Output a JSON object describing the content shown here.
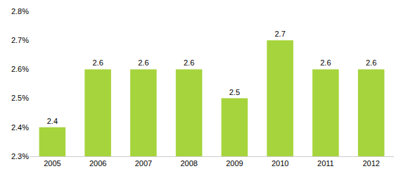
{
  "chart_data": {
    "type": "bar",
    "categories": [
      "2005",
      "2006",
      "2007",
      "2008",
      "2009",
      "2010",
      "2011",
      "2012"
    ],
    "values": [
      2.4,
      2.6,
      2.6,
      2.6,
      2.5,
      2.7,
      2.6,
      2.6
    ],
    "color": "#a6d43c",
    "ylim": [
      2.3,
      2.8
    ],
    "yticks": [
      {
        "value": 2.3,
        "label": "2.3%"
      },
      {
        "value": 2.4,
        "label": "2.4%"
      },
      {
        "value": 2.5,
        "label": "2.5%"
      },
      {
        "value": 2.6,
        "label": "2.6%"
      },
      {
        "value": 2.7,
        "label": "2.7%"
      },
      {
        "value": 2.8,
        "label": "2.8%"
      }
    ],
    "grid": false,
    "data_labels": true
  }
}
